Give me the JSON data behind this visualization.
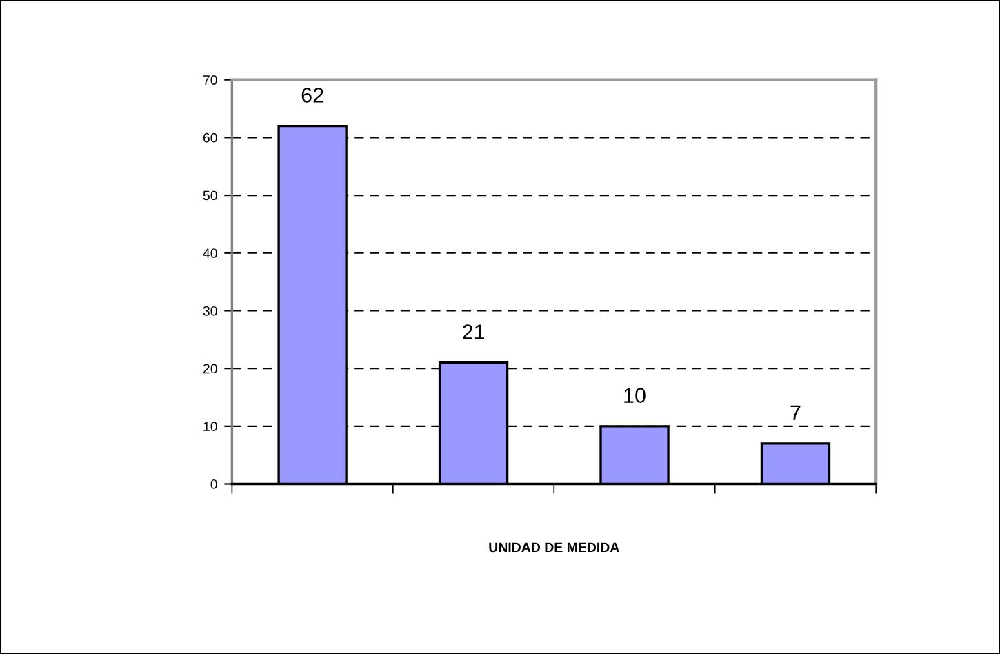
{
  "chart_data": {
    "type": "bar",
    "xlabel": "UNIDAD DE MEDIDA",
    "categories": [
      null,
      null,
      null,
      null
    ],
    "values": [
      62,
      21,
      10,
      7
    ],
    "color": "#9999ff",
    "ylim": [
      0,
      70
    ],
    "yticks": [
      0,
      10,
      20,
      30,
      40,
      50,
      60,
      70
    ],
    "grid": "y",
    "line_style": "dashed",
    "data_labels": true
  }
}
